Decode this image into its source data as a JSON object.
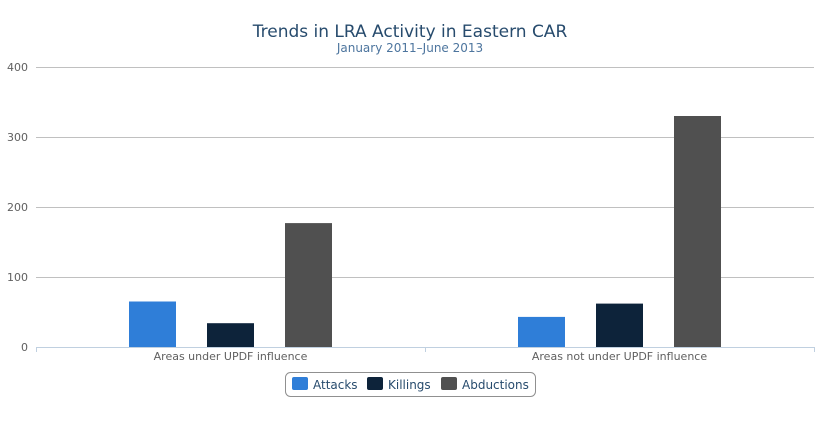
{
  "chart_data": {
    "type": "bar",
    "title": "Trends in LRA Activity in Eastern CAR",
    "subtitle": "January 2011–June 2013",
    "categories": [
      "Areas under UPDF influence",
      "Areas not under UPDF influence"
    ],
    "series": [
      {
        "name": "Attacks",
        "color": "#2f7ed8",
        "values": [
          65,
          43
        ]
      },
      {
        "name": "Killings",
        "color": "#0d233a",
        "values": [
          34,
          62
        ]
      },
      {
        "name": "Abductions",
        "color": "#505050",
        "values": [
          177,
          330
        ]
      }
    ],
    "yticks": [
      0,
      100,
      200,
      300,
      400
    ],
    "ylim": [
      0,
      400
    ],
    "grid": true,
    "legend": "bottom-center"
  }
}
